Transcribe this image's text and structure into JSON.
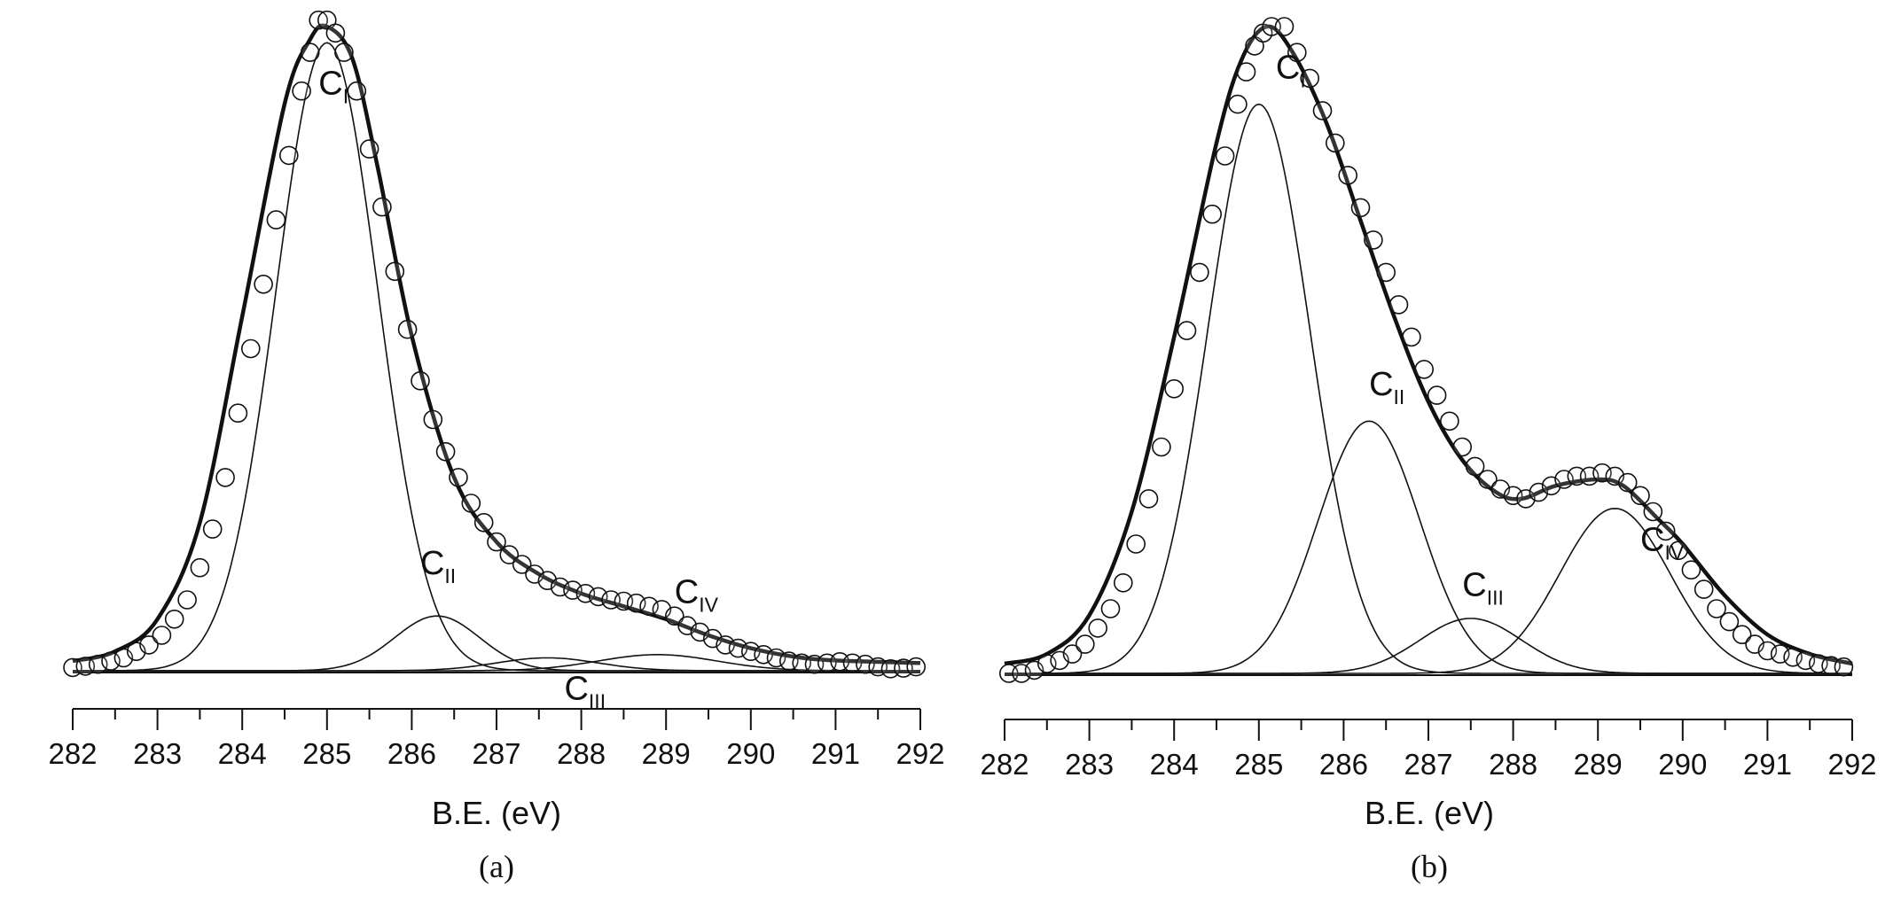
{
  "chart_data": [
    {
      "type": "line",
      "panel_label": "(a)",
      "xlabel": "B.E. (eV)",
      "xlim": [
        282,
        292
      ],
      "x_ticks": [
        282,
        283,
        284,
        285,
        286,
        287,
        288,
        289,
        290,
        291,
        292
      ],
      "ylim": [
        0,
        1.0
      ],
      "grid": false,
      "series": [
        {
          "kind": "envelope",
          "label_main": "",
          "label_sub": "",
          "label_pos": [
            0,
            0
          ],
          "points": [
            [
              282,
              0.015
            ],
            [
              282.5,
              0.03
            ],
            [
              283,
              0.08
            ],
            [
              283.5,
              0.23
            ],
            [
              284,
              0.55
            ],
            [
              284.5,
              0.88
            ],
            [
              284.8,
              0.98
            ],
            [
              285,
              1.0
            ],
            [
              285.3,
              0.95
            ],
            [
              285.6,
              0.78
            ],
            [
              286,
              0.52
            ],
            [
              286.5,
              0.3
            ],
            [
              287,
              0.2
            ],
            [
              287.5,
              0.15
            ],
            [
              288,
              0.12
            ],
            [
              288.5,
              0.1
            ],
            [
              289,
              0.08
            ],
            [
              289.5,
              0.055
            ],
            [
              290,
              0.035
            ],
            [
              290.5,
              0.022
            ],
            [
              291,
              0.016
            ],
            [
              292,
              0.012
            ]
          ]
        },
        {
          "kind": "component",
          "label_main": "C",
          "label_sub": "I",
          "label_pos": [
            284.9,
            0.895
          ],
          "center": 285.0,
          "amplitude": 0.975,
          "sigma": 0.6
        },
        {
          "kind": "component",
          "label_main": "C",
          "label_sub": "II",
          "label_pos": [
            286.1,
            0.15
          ],
          "center": 286.3,
          "amplitude": 0.085,
          "sigma": 0.5
        },
        {
          "kind": "component",
          "label_main": "C",
          "label_sub": "III",
          "label_pos": [
            287.8,
            -0.045
          ],
          "center": 287.6,
          "amplitude": 0.02,
          "sigma": 0.6
        },
        {
          "kind": "component",
          "label_main": "C",
          "label_sub": "IV",
          "label_pos": [
            289.1,
            0.105
          ],
          "center": 288.9,
          "amplitude": 0.025,
          "sigma": 0.7
        }
      ],
      "data_points": {
        "kind": "experimental",
        "marker": "circle",
        "points": [
          [
            282.0,
            0.005
          ],
          [
            282.15,
            0.007
          ],
          [
            282.3,
            0.01
          ],
          [
            282.45,
            0.015
          ],
          [
            282.6,
            0.02
          ],
          [
            282.75,
            0.03
          ],
          [
            282.9,
            0.04
          ],
          [
            283.05,
            0.055
          ],
          [
            283.2,
            0.08
          ],
          [
            283.35,
            0.11
          ],
          [
            283.5,
            0.16
          ],
          [
            283.65,
            0.22
          ],
          [
            283.8,
            0.3
          ],
          [
            283.95,
            0.4
          ],
          [
            284.1,
            0.5
          ],
          [
            284.25,
            0.6
          ],
          [
            284.4,
            0.7
          ],
          [
            284.55,
            0.8
          ],
          [
            284.7,
            0.9
          ],
          [
            284.8,
            0.96
          ],
          [
            284.9,
            1.01
          ],
          [
            285.0,
            1.01
          ],
          [
            285.1,
            0.99
          ],
          [
            285.2,
            0.96
          ],
          [
            285.35,
            0.9
          ],
          [
            285.5,
            0.81
          ],
          [
            285.65,
            0.72
          ],
          [
            285.8,
            0.62
          ],
          [
            285.95,
            0.53
          ],
          [
            286.1,
            0.45
          ],
          [
            286.25,
            0.39
          ],
          [
            286.4,
            0.34
          ],
          [
            286.55,
            0.3
          ],
          [
            286.7,
            0.26
          ],
          [
            286.85,
            0.23
          ],
          [
            287.0,
            0.2
          ],
          [
            287.15,
            0.18
          ],
          [
            287.3,
            0.165
          ],
          [
            287.45,
            0.15
          ],
          [
            287.6,
            0.14
          ],
          [
            287.75,
            0.13
          ],
          [
            287.9,
            0.125
          ],
          [
            288.05,
            0.12
          ],
          [
            288.2,
            0.115
          ],
          [
            288.35,
            0.11
          ],
          [
            288.5,
            0.108
          ],
          [
            288.65,
            0.105
          ],
          [
            288.8,
            0.1
          ],
          [
            288.95,
            0.095
          ],
          [
            289.1,
            0.085
          ],
          [
            289.25,
            0.07
          ],
          [
            289.4,
            0.06
          ],
          [
            289.55,
            0.05
          ],
          [
            289.7,
            0.04
          ],
          [
            289.85,
            0.035
          ],
          [
            290.0,
            0.03
          ],
          [
            290.15,
            0.025
          ],
          [
            290.3,
            0.02
          ],
          [
            290.45,
            0.015
          ],
          [
            290.6,
            0.012
          ],
          [
            290.75,
            0.01
          ],
          [
            290.9,
            0.012
          ],
          [
            291.05,
            0.014
          ],
          [
            291.2,
            0.012
          ],
          [
            291.35,
            0.01
          ],
          [
            291.5,
            0.006
          ],
          [
            291.65,
            0.003
          ],
          [
            291.8,
            0.004
          ],
          [
            291.95,
            0.006
          ]
        ]
      }
    },
    {
      "type": "line",
      "panel_label": "(b)",
      "xlabel": "B.E. (eV)",
      "xlim": [
        282,
        292
      ],
      "x_ticks": [
        282,
        283,
        284,
        285,
        286,
        287,
        288,
        289,
        290,
        291,
        292
      ],
      "ylim": [
        0,
        1.0
      ],
      "grid": false,
      "series": [
        {
          "kind": "envelope",
          "label_main": "",
          "label_sub": "",
          "label_pos": [
            0,
            0
          ],
          "points": [
            [
              282,
              0.015
            ],
            [
              282.5,
              0.03
            ],
            [
              283,
              0.09
            ],
            [
              283.5,
              0.25
            ],
            [
              284,
              0.52
            ],
            [
              284.5,
              0.82
            ],
            [
              284.8,
              0.95
            ],
            [
              285.1,
              1.0
            ],
            [
              285.4,
              0.96
            ],
            [
              285.8,
              0.85
            ],
            [
              286.2,
              0.7
            ],
            [
              286.6,
              0.55
            ],
            [
              287,
              0.42
            ],
            [
              287.4,
              0.33
            ],
            [
              287.8,
              0.28
            ],
            [
              288.1,
              0.27
            ],
            [
              288.5,
              0.29
            ],
            [
              289,
              0.3
            ],
            [
              289.3,
              0.29
            ],
            [
              289.7,
              0.24
            ],
            [
              290,
              0.2
            ],
            [
              290.5,
              0.12
            ],
            [
              291,
              0.06
            ],
            [
              291.5,
              0.03
            ],
            [
              292,
              0.015
            ]
          ]
        },
        {
          "kind": "component",
          "label_main": "C",
          "label_sub": "I",
          "label_pos": [
            285.2,
            0.92
          ],
          "center": 285.0,
          "amplitude": 0.88,
          "sigma": 0.6
        },
        {
          "kind": "component",
          "label_main": "C",
          "label_sub": "II",
          "label_pos": [
            286.3,
            0.43
          ],
          "center": 286.3,
          "amplitude": 0.39,
          "sigma": 0.6
        },
        {
          "kind": "component",
          "label_main": "C",
          "label_sub": "III",
          "label_pos": [
            287.4,
            0.12
          ],
          "center": 287.5,
          "amplitude": 0.085,
          "sigma": 0.6
        },
        {
          "kind": "component",
          "label_main": "C",
          "label_sub": "IV",
          "label_pos": [
            289.5,
            0.19
          ],
          "center": 289.2,
          "amplitude": 0.255,
          "sigma": 0.65
        }
      ],
      "data_points": {
        "kind": "experimental",
        "marker": "circle",
        "points": [
          [
            282.05,
            0.0
          ],
          [
            282.2,
            0.0
          ],
          [
            282.35,
            0.005
          ],
          [
            282.5,
            0.015
          ],
          [
            282.65,
            0.02
          ],
          [
            282.8,
            0.03
          ],
          [
            282.95,
            0.045
          ],
          [
            283.1,
            0.07
          ],
          [
            283.25,
            0.1
          ],
          [
            283.4,
            0.14
          ],
          [
            283.55,
            0.2
          ],
          [
            283.7,
            0.27
          ],
          [
            283.85,
            0.35
          ],
          [
            284.0,
            0.44
          ],
          [
            284.15,
            0.53
          ],
          [
            284.3,
            0.62
          ],
          [
            284.45,
            0.71
          ],
          [
            284.6,
            0.8
          ],
          [
            284.75,
            0.88
          ],
          [
            284.85,
            0.93
          ],
          [
            284.95,
            0.97
          ],
          [
            285.05,
            0.99
          ],
          [
            285.15,
            1.0
          ],
          [
            285.3,
            1.0
          ],
          [
            285.45,
            0.96
          ],
          [
            285.6,
            0.92
          ],
          [
            285.75,
            0.87
          ],
          [
            285.9,
            0.82
          ],
          [
            286.05,
            0.77
          ],
          [
            286.2,
            0.72
          ],
          [
            286.35,
            0.67
          ],
          [
            286.5,
            0.62
          ],
          [
            286.65,
            0.57
          ],
          [
            286.8,
            0.52
          ],
          [
            286.95,
            0.47
          ],
          [
            287.1,
            0.43
          ],
          [
            287.25,
            0.39
          ],
          [
            287.4,
            0.35
          ],
          [
            287.55,
            0.32
          ],
          [
            287.7,
            0.3
          ],
          [
            287.85,
            0.285
          ],
          [
            288.0,
            0.275
          ],
          [
            288.15,
            0.27
          ],
          [
            288.3,
            0.28
          ],
          [
            288.45,
            0.29
          ],
          [
            288.6,
            0.3
          ],
          [
            288.75,
            0.305
          ],
          [
            288.9,
            0.305
          ],
          [
            289.05,
            0.31
          ],
          [
            289.2,
            0.305
          ],
          [
            289.35,
            0.295
          ],
          [
            289.5,
            0.275
          ],
          [
            289.65,
            0.25
          ],
          [
            289.8,
            0.22
          ],
          [
            289.95,
            0.19
          ],
          [
            290.1,
            0.16
          ],
          [
            290.25,
            0.13
          ],
          [
            290.4,
            0.1
          ],
          [
            290.55,
            0.08
          ],
          [
            290.7,
            0.06
          ],
          [
            290.85,
            0.045
          ],
          [
            291.0,
            0.035
          ],
          [
            291.15,
            0.03
          ],
          [
            291.3,
            0.025
          ],
          [
            291.45,
            0.02
          ],
          [
            291.6,
            0.015
          ],
          [
            291.75,
            0.012
          ],
          [
            291.9,
            0.01
          ]
        ]
      }
    }
  ]
}
